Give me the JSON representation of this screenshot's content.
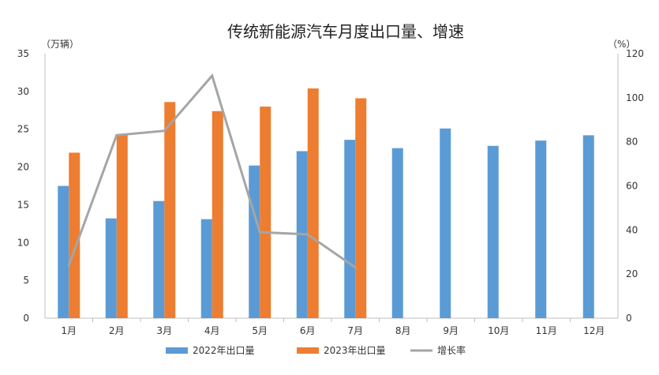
{
  "chart_data": {
    "type": "bar",
    "title": "传统新能源汽车月度出口量、增速",
    "left_unit": "（万辆）",
    "right_unit": "（%）",
    "categories": [
      "1月",
      "2月",
      "3月",
      "4月",
      "5月",
      "6月",
      "7月",
      "8月",
      "9月",
      "10月",
      "11月",
      "12月"
    ],
    "ylim": [
      0,
      35
    ],
    "y_ticks": [
      0,
      5,
      10,
      15,
      20,
      25,
      30,
      35
    ],
    "y2lim": [
      0,
      120
    ],
    "y2_ticks": [
      0,
      20,
      40,
      60,
      80,
      100,
      120
    ],
    "series": [
      {
        "name": "2022年出口量",
        "type": "bar",
        "axis": "left",
        "color": "#5B9BD5",
        "values": [
          17.5,
          13.2,
          15.5,
          13.1,
          20.2,
          22.1,
          23.6,
          22.5,
          25.1,
          22.8,
          23.5,
          24.2
        ]
      },
      {
        "name": "2023年出口量",
        "type": "bar",
        "axis": "left",
        "color": "#ED7D31",
        "values": [
          21.9,
          24.3,
          28.6,
          27.4,
          28.0,
          30.4,
          29.1,
          null,
          null,
          null,
          null,
          null
        ]
      },
      {
        "name": "增长率",
        "type": "line",
        "axis": "right",
        "color": "#A5A5A5",
        "values": [
          24,
          83,
          85,
          110,
          39,
          38,
          23,
          null,
          null,
          null,
          null,
          null
        ]
      }
    ],
    "grid": false,
    "legend_position": "bottom"
  }
}
